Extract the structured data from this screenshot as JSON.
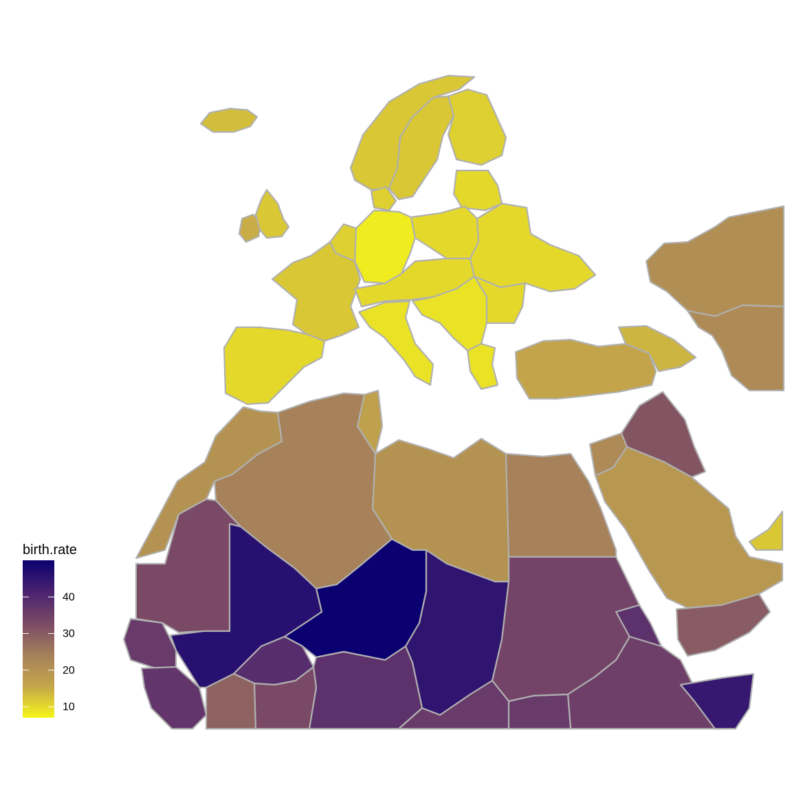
{
  "legend": {
    "title": "birth.rate",
    "min": 7,
    "max": 50,
    "ticks": [
      {
        "value": 10,
        "label": "10"
      },
      {
        "value": 20,
        "label": "20"
      },
      {
        "value": 30,
        "label": "30"
      },
      {
        "value": 40,
        "label": "40"
      }
    ],
    "color_stops": [
      "#f5f51a",
      "#c4a64a",
      "#a5805a",
      "#7a4a66",
      "#4a2270",
      "#0a0070"
    ]
  },
  "regions": [
    {
      "id": "iceland",
      "value": 13
    },
    {
      "id": "ireland",
      "value": 15
    },
    {
      "id": "uk",
      "value": 12
    },
    {
      "id": "norway",
      "value": 12
    },
    {
      "id": "sweden",
      "value": 12
    },
    {
      "id": "finland",
      "value": 11
    },
    {
      "id": "denmark",
      "value": 11
    },
    {
      "id": "baltics",
      "value": 10
    },
    {
      "id": "germany",
      "value": 8
    },
    {
      "id": "poland",
      "value": 10
    },
    {
      "id": "france",
      "value": 12
    },
    {
      "id": "benelux",
      "value": 11
    },
    {
      "id": "iberia",
      "value": 10
    },
    {
      "id": "italy",
      "value": 9
    },
    {
      "id": "central-europe",
      "value": 10
    },
    {
      "id": "balkans",
      "value": 9
    },
    {
      "id": "ukraine-belarus",
      "value": 10
    },
    {
      "id": "romania-moldova",
      "value": 10
    },
    {
      "id": "greece",
      "value": 9
    },
    {
      "id": "turkey",
      "value": 16
    },
    {
      "id": "caucasus",
      "value": 14
    },
    {
      "id": "kazakhstan",
      "value": 21
    },
    {
      "id": "central-asia",
      "value": 22
    },
    {
      "id": "morocco",
      "value": 20
    },
    {
      "id": "algeria",
      "value": 24
    },
    {
      "id": "tunisia",
      "value": 17
    },
    {
      "id": "libya",
      "value": 20
    },
    {
      "id": "egypt",
      "value": 24
    },
    {
      "id": "levant",
      "value": 22
    },
    {
      "id": "iraq",
      "value": 31
    },
    {
      "id": "saudi-arabia",
      "value": 19
    },
    {
      "id": "gulf-states",
      "value": 12
    },
    {
      "id": "yemen",
      "value": 30
    },
    {
      "id": "mauritania",
      "value": 33
    },
    {
      "id": "mali",
      "value": 46
    },
    {
      "id": "niger",
      "value": 50
    },
    {
      "id": "chad",
      "value": 45
    },
    {
      "id": "sudan",
      "value": 34
    },
    {
      "id": "eritrea",
      "value": 38
    },
    {
      "id": "ethiopia",
      "value": 35
    },
    {
      "id": "somalia",
      "value": 44
    },
    {
      "id": "senegal-gambia",
      "value": 36
    },
    {
      "id": "guinea-sl-liberia",
      "value": 37
    },
    {
      "id": "burkina-faso",
      "value": 39
    },
    {
      "id": "ivory-coast",
      "value": 29
    },
    {
      "id": "ghana-togo-benin",
      "value": 33
    },
    {
      "id": "nigeria",
      "value": 38
    },
    {
      "id": "cameroon-car",
      "value": 36
    },
    {
      "id": "south-sudan",
      "value": 36
    }
  ]
}
